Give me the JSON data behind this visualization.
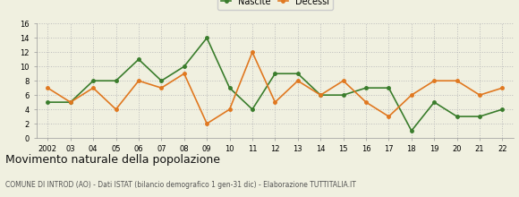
{
  "years": [
    2002,
    2003,
    2004,
    2005,
    2006,
    2007,
    2008,
    2009,
    2010,
    2011,
    2012,
    2013,
    2014,
    2015,
    2016,
    2017,
    2018,
    2019,
    2020,
    2021,
    2022
  ],
  "nascite": [
    5,
    5,
    8,
    8,
    11,
    8,
    10,
    14,
    7,
    4,
    9,
    9,
    6,
    6,
    7,
    7,
    1,
    5,
    3,
    3,
    4
  ],
  "decessi": [
    7,
    5,
    7,
    4,
    8,
    7,
    9,
    2,
    4,
    12,
    5,
    8,
    6,
    8,
    5,
    3,
    6,
    8,
    8,
    6,
    7
  ],
  "nascite_color": "#3a7d2c",
  "decessi_color": "#e07820",
  "ylim": [
    0,
    16
  ],
  "yticks": [
    0,
    2,
    4,
    6,
    8,
    10,
    12,
    14,
    16
  ],
  "xlabel_labels": [
    "2002",
    "03",
    "04",
    "05",
    "06",
    "07",
    "08",
    "09",
    "10",
    "11",
    "12",
    "13",
    "14",
    "15",
    "16",
    "17",
    "18",
    "19",
    "20",
    "21",
    "22"
  ],
  "title": "Movimento naturale della popolazione",
  "subtitle": "COMUNE DI INTROD (AO) - Dati ISTAT (bilancio demografico 1 gen-31 dic) - Elaborazione TUTTITALIA.IT",
  "legend_nascite": "Nascite",
  "legend_decessi": "Decessi",
  "bg_color": "#f0f0e0",
  "grid_color": "#bbbbbb"
}
